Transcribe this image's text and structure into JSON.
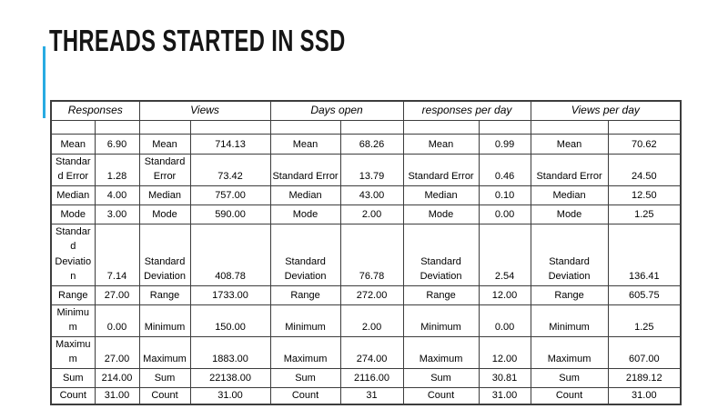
{
  "slide": {
    "title": "THREADS STARTED IN SSD"
  },
  "colors": {
    "accent_blue": "#29ABE2",
    "table_border": "#3d3d3d",
    "text": "#000000"
  },
  "table": {
    "group_headers": [
      "Responses",
      "Views",
      "Days open",
      "responses per day",
      "Views per day"
    ],
    "stats": [
      {
        "label": "Mean",
        "values": [
          "6.90",
          "714.13",
          "68.26",
          "0.99",
          "70.62"
        ]
      },
      {
        "label": "Standard Error",
        "values": [
          "1.28",
          "73.42",
          "13.79",
          "0.46",
          "24.50"
        ]
      },
      {
        "label": "Median",
        "values": [
          "4.00",
          "757.00",
          "43.00",
          "0.10",
          "12.50"
        ]
      },
      {
        "label": "Mode",
        "values": [
          "3.00",
          "590.00",
          "2.00",
          "0.00",
          "1.25"
        ]
      },
      {
        "label": "Standard Deviation",
        "values": [
          "7.14",
          "408.78",
          "76.78",
          "2.54",
          "136.41"
        ]
      },
      {
        "label": "Range",
        "values": [
          "27.00",
          "1733.00",
          "272.00",
          "12.00",
          "605.75"
        ]
      },
      {
        "label": "Minimum",
        "values": [
          "0.00",
          "150.00",
          "2.00",
          "0.00",
          "1.25"
        ]
      },
      {
        "label": "Maximum",
        "values": [
          "27.00",
          "1883.00",
          "274.00",
          "12.00",
          "607.00"
        ]
      },
      {
        "label": "Sum",
        "values": [
          "214.00",
          "22138.00",
          "2116.00",
          "30.81",
          "2189.12"
        ]
      },
      {
        "label": "Count",
        "values": [
          "31.00",
          "31.00",
          "31",
          "31.00",
          "31.00"
        ]
      }
    ]
  }
}
